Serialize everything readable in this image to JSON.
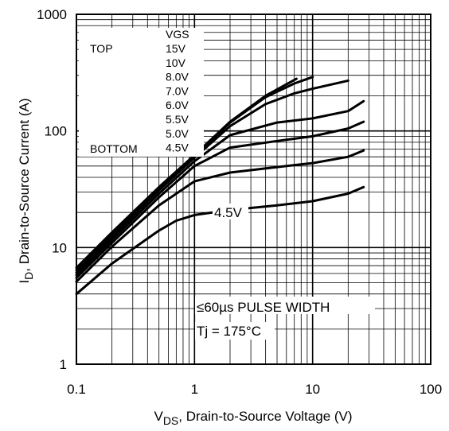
{
  "chart_data": {
    "type": "line",
    "x_scale": "log",
    "y_scale": "log",
    "xlim": [
      0.1,
      100
    ],
    "ylim": [
      1,
      1000
    ],
    "grid": true,
    "x_ticks": [
      "0.1",
      "1",
      "10",
      "100"
    ],
    "y_ticks": [
      "1",
      "10",
      "100",
      "1000"
    ],
    "xlabel": {
      "main": "V",
      "sub": "DS",
      "rest": ", Drain-to-Source Voltage (V)"
    },
    "ylabel": {
      "main": "I",
      "sub": "D",
      "rest": ", Drain-to-Source Current (A)"
    },
    "legend": {
      "header": "VGS",
      "top_label": "TOP",
      "bottom_label": "BOTTOM",
      "entries": [
        "15V",
        "10V",
        "8.0V",
        "7.0V",
        "6.0V",
        "5.5V",
        "5.0V",
        "4.5V"
      ]
    },
    "annotations": {
      "pulse": "≤60µs PULSE WIDTH",
      "temp": "Tj = 175°C",
      "curve_label": "4.5V"
    },
    "series": [
      {
        "x": [
          0.1,
          0.2,
          0.5,
          1,
          2,
          4,
          7.3
        ],
        "y": [
          6.7,
          13.5,
          33,
          62,
          120,
          200,
          280
        ]
      },
      {
        "x": [
          0.1,
          0.2,
          0.5,
          1,
          2,
          4,
          7,
          10
        ],
        "y": [
          6.4,
          13,
          32,
          61,
          118,
          195,
          255,
          290
        ]
      },
      {
        "x": [
          0.1,
          0.2,
          0.5,
          1,
          2,
          4,
          7,
          10,
          20
        ],
        "y": [
          6.1,
          12.4,
          31,
          59,
          110,
          170,
          210,
          230,
          270
        ]
      },
      {
        "x": [
          0.1,
          0.2,
          0.5,
          1,
          2,
          5,
          10,
          20,
          27
        ],
        "y": [
          5.8,
          11.7,
          29,
          55,
          92,
          118,
          128,
          148,
          180
        ]
      },
      {
        "x": [
          0.1,
          0.2,
          0.5,
          1,
          2,
          5,
          10,
          20,
          27
        ],
        "y": [
          5.5,
          11,
          27,
          50,
          72,
          82,
          90,
          105,
          120
        ]
      },
      {
        "x": [
          0.1,
          0.2,
          0.5,
          1,
          2,
          5,
          10,
          20,
          27
        ],
        "y": [
          5.1,
          10.2,
          23,
          37,
          44,
          49,
          53,
          60,
          68
        ]
      },
      {
        "x": [
          0.1,
          0.2,
          0.5,
          0.7,
          1,
          2,
          5,
          10,
          20,
          27
        ],
        "y": [
          4.0,
          7.3,
          14,
          17,
          19,
          21,
          23,
          25,
          29,
          33
        ]
      }
    ]
  }
}
